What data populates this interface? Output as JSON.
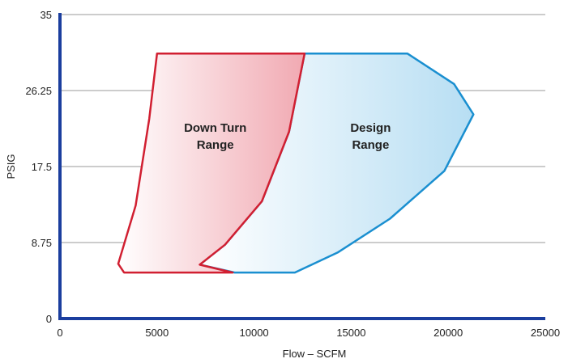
{
  "chart_data": {
    "type": "area",
    "title": "",
    "xlabel": "Flow – SCFM",
    "ylabel": "PSIG",
    "xlim": [
      0,
      25000
    ],
    "ylim": [
      0,
      35
    ],
    "x_ticks": [
      "0",
      "5000",
      "10000",
      "15000",
      "20000",
      "25000"
    ],
    "y_ticks": [
      "0",
      "8.75",
      "17.5",
      "26.25",
      "35"
    ],
    "grid": "horizontal",
    "legend": "none",
    "series": [
      {
        "name": "Design Range",
        "label_lines": [
          "Design",
          "Range"
        ],
        "label_pos": [
          16000,
          21.5
        ],
        "color": "#1a8fd0",
        "fill_light": "#ffffff",
        "fill_dark": "#b7def3",
        "outline": [
          [
            12600,
            30.5
          ],
          [
            17900,
            30.5
          ],
          [
            20300,
            27.0
          ],
          [
            21300,
            23.5
          ],
          [
            19800,
            17.0
          ],
          [
            17000,
            11.5
          ],
          [
            14300,
            7.6
          ],
          [
            12100,
            5.3
          ],
          [
            9000,
            5.3
          ],
          [
            7200,
            6.2
          ],
          [
            8500,
            8.5
          ],
          [
            10400,
            13.5
          ],
          [
            11800,
            21.5
          ],
          [
            12600,
            30.5
          ]
        ]
      },
      {
        "name": "Down Turn Range",
        "label_lines": [
          "Down Turn",
          "Range"
        ],
        "label_pos": [
          8000,
          21.5
        ],
        "color": "#d11f31",
        "fill_light": "#ffffff",
        "fill_dark": "#f1a9b2",
        "outline": [
          [
            5000,
            30.5
          ],
          [
            12600,
            30.5
          ],
          [
            11800,
            21.5
          ],
          [
            10400,
            13.5
          ],
          [
            8500,
            8.5
          ],
          [
            7200,
            6.2
          ],
          [
            8900,
            5.3
          ],
          [
            3300,
            5.3
          ],
          [
            3000,
            6.3
          ],
          [
            3900,
            13.0
          ],
          [
            4600,
            23.0
          ],
          [
            5000,
            30.5
          ]
        ]
      }
    ]
  }
}
